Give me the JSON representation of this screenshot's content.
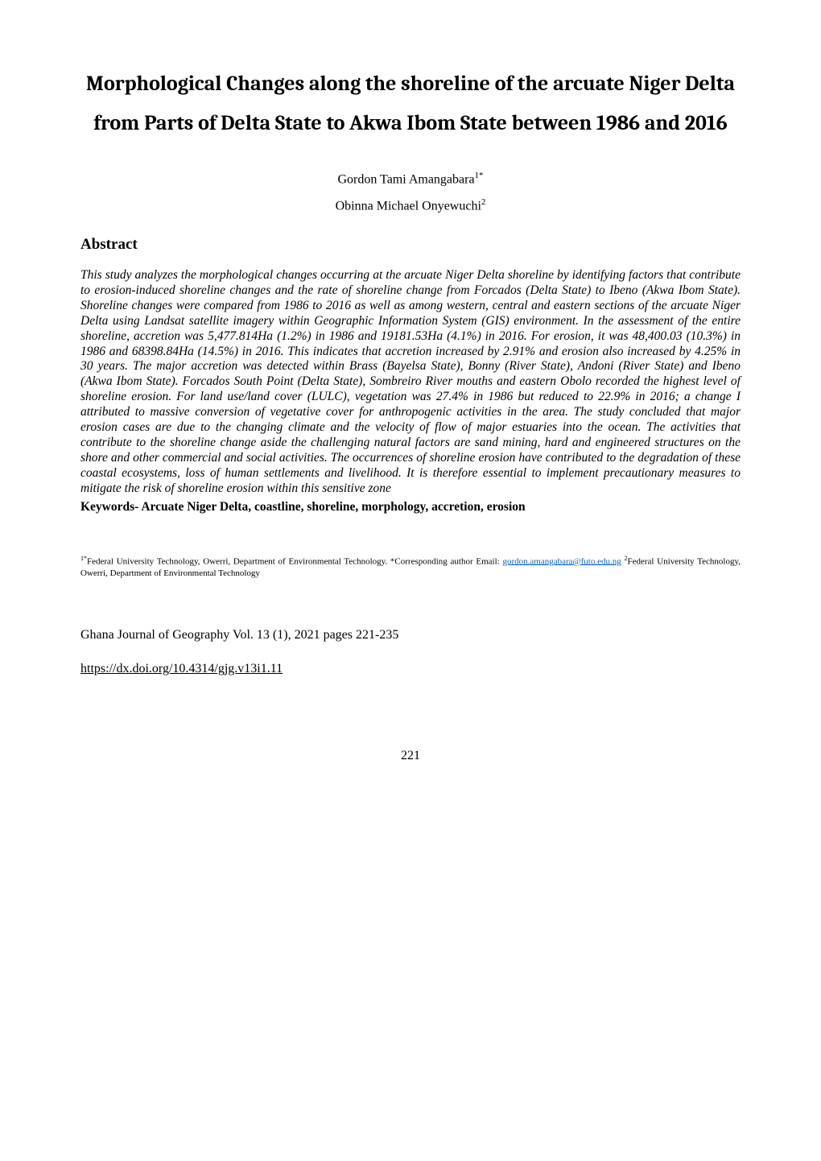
{
  "title": "Morphological Changes along the shoreline of the arcuate Niger Delta from Parts of Delta State to Akwa Ibom State between 1986 and 2016",
  "authors": [
    {
      "name": "Gordon Tami Amangabara",
      "superscript": "1*"
    },
    {
      "name": "Obinna Michael Onyewuchi",
      "superscript": "2"
    }
  ],
  "abstract_heading": "Abstract",
  "abstract_text": "This study analyzes the morphological changes occurring at the arcuate Niger Delta shoreline by identifying factors that contribute to erosion-induced shoreline changes and the rate of shoreline change from Forcados (Delta State) to Ibeno (Akwa Ibom State). Shoreline changes were compared from 1986 to 2016 as well as among western, central and eastern sections of the arcuate Niger Delta using Landsat satellite imagery within Geographic Information System (GIS) environment. In the assessment of the entire shoreline, accretion was 5,477.814Ha (1.2%) in 1986 and 19181.53Ha (4.1%) in 2016. For erosion, it was 48,400.03 (10.3%) in 1986 and 68398.84Ha (14.5%) in 2016. This indicates that accretion increased by 2.91% and erosion also increased by 4.25% in 30 years. The major accretion was detected within Brass (Bayelsa State), Bonny (River State), Andoni (River State) and Ibeno (Akwa Ibom State). Forcados South Point (Delta State), Sombreiro River mouths and eastern Obolo recorded the highest level of shoreline erosion. For land use/land cover (LULC), vegetation was 27.4% in 1986 but reduced to 22.9% in 2016; a change I attributed to massive conversion of vegetative cover for anthropogenic activities in the area. The study concluded that major erosion cases are due to the changing climate and the velocity of flow of major estuaries into the ocean. The activities that contribute to the shoreline change aside the challenging natural factors are sand mining, hard and engineered structures on the shore and other commercial and social activities. The occurrences of shoreline erosion have contributed to the degradation of these coastal ecosystems, loss of human settlements and livelihood. It is therefore essential to implement precautionary measures to mitigate the risk of shoreline erosion within this sensitive zone",
  "keywords_label": "Keywords- ",
  "keywords_text": "Arcuate Niger Delta, coastline, shoreline, morphology, accretion, erosion",
  "affiliation_pre": "Federal University Technology, Owerri, Department of Environmental Technology. *Corresponding author Email: ",
  "affiliation_email": "gordon.amangabara@futo.edu.ng",
  "affiliation_post": "Federal University Technology, Owerri, Department of Environmental Technology",
  "affiliation_sup1": "1*",
  "affiliation_sup2": "2",
  "journal_info": "Ghana Journal of Geography Vol. 13 (1), 2021 pages 221-235",
  "doi": "https://dx.doi.org/10.4314/gjg.v13i1.11",
  "page_number": "221",
  "colors": {
    "background": "#ffffff",
    "text": "#000000",
    "link": "#0563c1"
  },
  "typography": {
    "title_fontsize": 26,
    "title_fontweight": "bold",
    "author_fontsize": 16,
    "heading_fontsize": 19,
    "body_fontsize": 15.5,
    "affiliation_fontsize": 11,
    "page_number_fontsize": 16
  }
}
